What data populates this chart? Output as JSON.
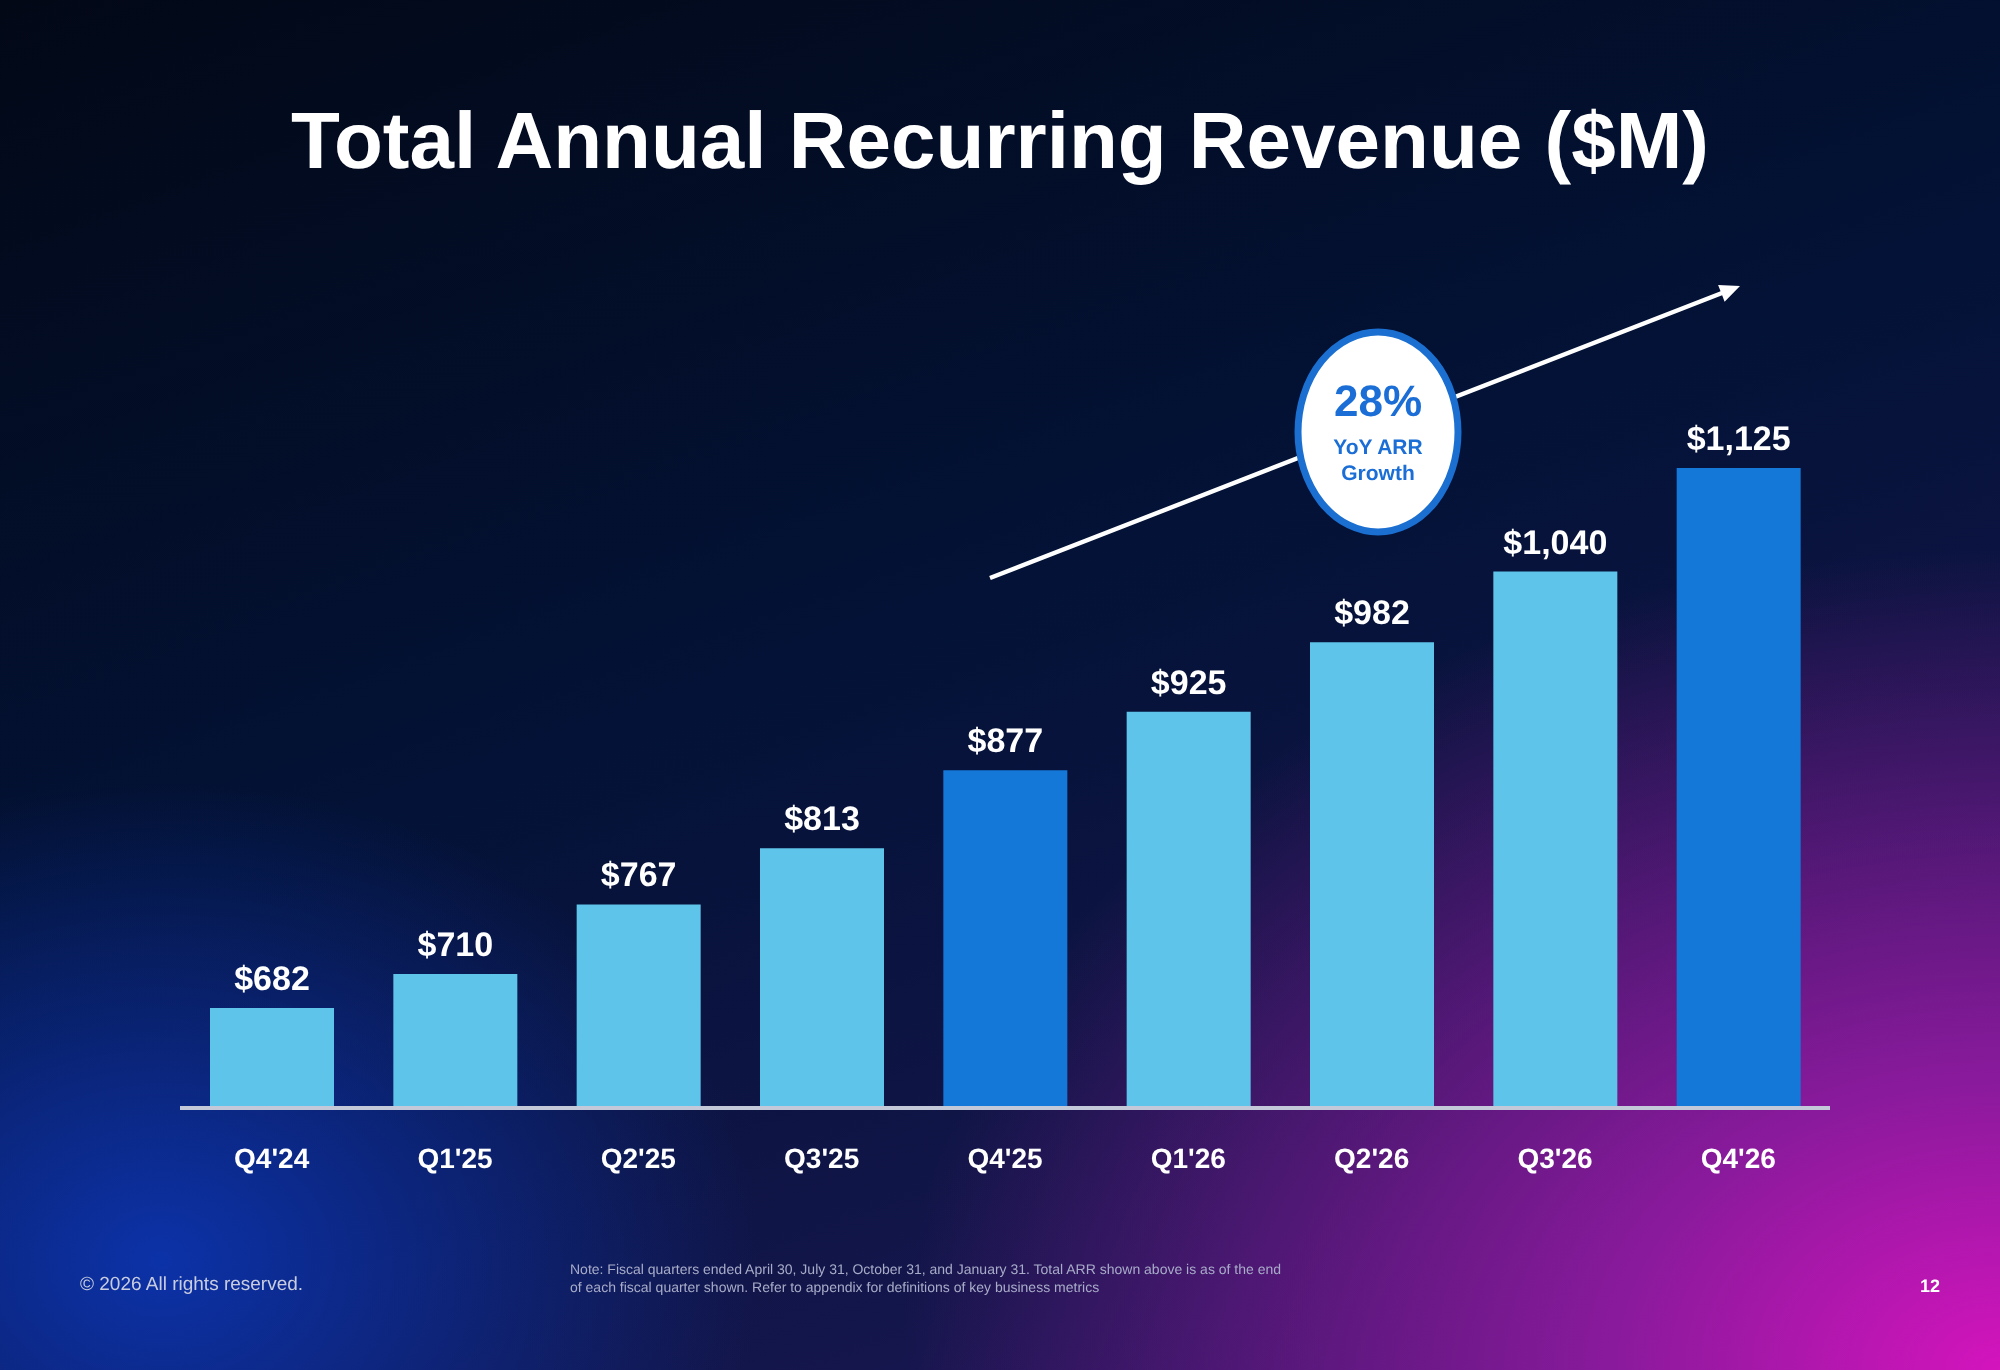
{
  "chart_data": {
    "type": "bar",
    "title": "Total Annual Recurring Revenue ($M)",
    "categories": [
      "Q4'24",
      "Q1'25",
      "Q2'25",
      "Q3'25",
      "Q4'25",
      "Q1'26",
      "Q2'26",
      "Q3'26",
      "Q4'26"
    ],
    "values": [
      682,
      710,
      767,
      813,
      877,
      925,
      982,
      1040,
      1125
    ],
    "value_labels": [
      "$682",
      "$710",
      "$767",
      "$813",
      "$877",
      "$925",
      "$982",
      "$1,040",
      "$1,125"
    ],
    "colors": [
      "#5ec4ea",
      "#5ec4ea",
      "#5ec4ea",
      "#5ec4ea",
      "#1478d8",
      "#5ec4ea",
      "#5ec4ea",
      "#5ec4ea",
      "#1478d8"
    ],
    "ylim": [
      600,
      1125
    ],
    "annotations": [
      "28%",
      "YoY ARR Growth",
      "© 2026 All rights reserved.",
      "Note: Fiscal quarters ended April 30, July 31, October 31, and January 31. Total ARR shown above is as of the end of each fiscal quarter shown.  Refer to appendix for definitions of key business metrics",
      "12"
    ]
  }
}
